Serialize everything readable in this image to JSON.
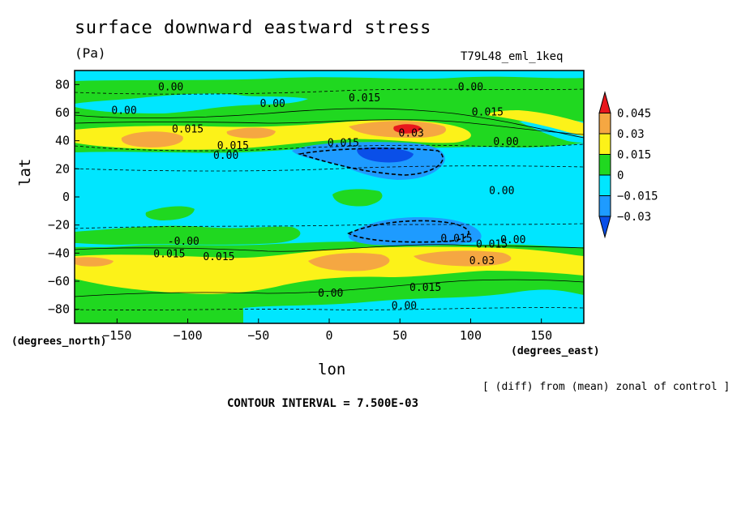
{
  "chart_data": {
    "type": "heatmap",
    "title": "surface downward eastward stress",
    "units": "(Pa)",
    "run_label": "T79L48_eml_1keq",
    "xlabel": "lon",
    "ylabel": "lat",
    "x_units_label": "(degrees_east)",
    "y_units_label": "(degrees_north)",
    "xlim": [
      -180,
      180
    ],
    "ylim": [
      -90,
      90
    ],
    "x_ticks": [
      -150,
      -100,
      -50,
      0,
      50,
      100,
      150
    ],
    "y_ticks": [
      80,
      60,
      40,
      20,
      0,
      -20,
      -40,
      -60,
      -80
    ],
    "colorbar": {
      "levels": [
        0.045,
        0.03,
        0.015,
        0,
        -0.015,
        -0.03
      ],
      "level_labels": [
        "0.045",
        "0.03",
        "0.015",
        "0",
        "−0.015",
        "−0.03"
      ],
      "colors": [
        "#e8171d",
        "#f5a742",
        "#fcf219",
        "#20d820",
        "#00e6ff",
        "#1e9bff",
        "#0a4fe8"
      ]
    },
    "contour_labels": [
      {
        "text": "0.00",
        "lon": -112,
        "lat": 76
      },
      {
        "text": "0.00",
        "lon": 100,
        "lat": 76
      },
      {
        "text": "0.00",
        "lon": -40,
        "lat": 64
      },
      {
        "text": "0.015",
        "lon": 25,
        "lat": 68
      },
      {
        "text": "0.00",
        "lon": -145,
        "lat": 59
      },
      {
        "text": "0.015",
        "lon": 112,
        "lat": 58
      },
      {
        "text": "0.015",
        "lon": -100,
        "lat": 46
      },
      {
        "text": "0.03",
        "lon": 58,
        "lat": 43
      },
      {
        "text": "0.00",
        "lon": 125,
        "lat": 37
      },
      {
        "text": "0.015",
        "lon": 10,
        "lat": 36
      },
      {
        "text": "0.015",
        "lon": -68,
        "lat": 34
      },
      {
        "text": "0.00",
        "lon": -73,
        "lat": 27
      },
      {
        "text": "0.00",
        "lon": 122,
        "lat": 2
      },
      {
        "text": "-0.00",
        "lon": -103,
        "lat": -34
      },
      {
        "text": "0.015",
        "lon": 90,
        "lat": -32
      },
      {
        "text": "0.015",
        "lon": 115,
        "lat": -36
      },
      {
        "text": "0.00",
        "lon": 130,
        "lat": -33
      },
      {
        "text": "0.015",
        "lon": -113,
        "lat": -43
      },
      {
        "text": "0.015",
        "lon": -78,
        "lat": -45
      },
      {
        "text": "0.03",
        "lon": 108,
        "lat": -48
      },
      {
        "text": "0.00",
        "lon": 1,
        "lat": -71
      },
      {
        "text": "0.015",
        "lon": 68,
        "lat": -67
      },
      {
        "text": "0.00",
        "lon": 53,
        "lat": -80
      }
    ]
  },
  "footnote": "[ (diff) from (mean) zonal of control ]",
  "contour_interval": "CONTOUR INTERVAL = 7.500E-03"
}
